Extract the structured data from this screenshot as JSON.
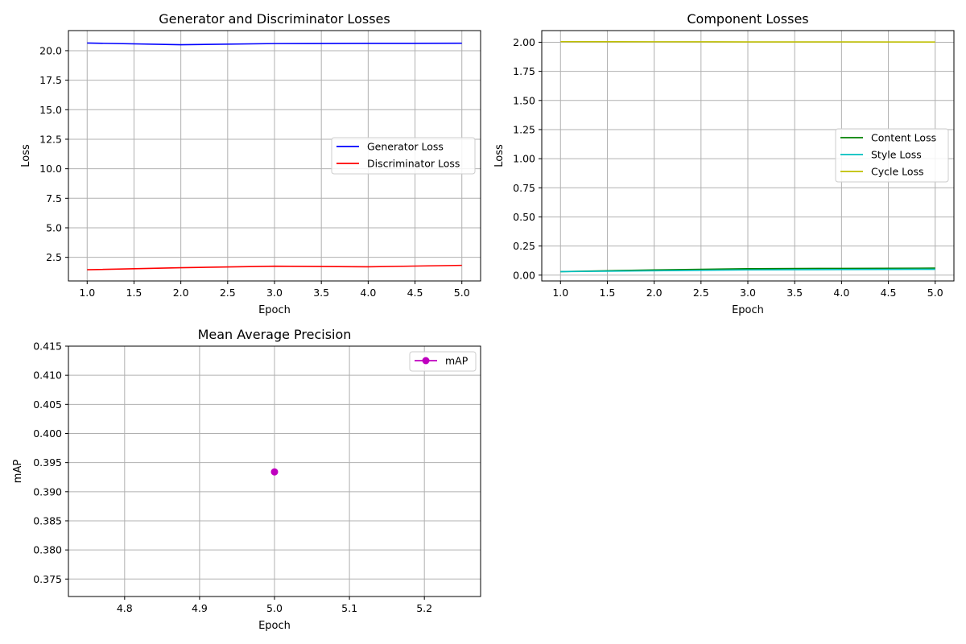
{
  "chart_data": [
    {
      "type": "line",
      "title": "Generator and Discriminator Losses",
      "xlabel": "Epoch",
      "ylabel": "Loss",
      "xlim": [
        0.8,
        5.2
      ],
      "ylim": [
        0.5,
        21.7
      ],
      "xticks": [
        "1.0",
        "1.5",
        "2.0",
        "2.5",
        "3.0",
        "3.5",
        "4.0",
        "4.5",
        "5.0"
      ],
      "yticks": [
        "2.5",
        "5.0",
        "7.5",
        "10.0",
        "12.5",
        "15.0",
        "17.5",
        "20.0"
      ],
      "grid": true,
      "legend_position": "center-right",
      "x": [
        1,
        2,
        3,
        4,
        5
      ],
      "series": [
        {
          "name": "Generator Loss",
          "color": "#0000ff",
          "values": [
            20.65,
            20.5,
            20.6,
            20.62,
            20.63
          ]
        },
        {
          "name": "Discriminator Loss",
          "color": "#ff0000",
          "values": [
            1.45,
            1.62,
            1.75,
            1.7,
            1.82
          ]
        }
      ]
    },
    {
      "type": "line",
      "title": "Component Losses",
      "xlabel": "Epoch",
      "ylabel": "Loss",
      "xlim": [
        0.8,
        5.2
      ],
      "ylim": [
        -0.05,
        2.1
      ],
      "xticks": [
        "1.0",
        "1.5",
        "2.0",
        "2.5",
        "3.0",
        "3.5",
        "4.0",
        "4.5",
        "5.0"
      ],
      "yticks": [
        "0.00",
        "0.25",
        "0.50",
        "0.75",
        "1.00",
        "1.25",
        "1.50",
        "1.75",
        "2.00"
      ],
      "grid": true,
      "legend_position": "center-right",
      "x": [
        1,
        2,
        3,
        4,
        5
      ],
      "series": [
        {
          "name": "Content Loss",
          "color": "#008000",
          "values": [
            0.03,
            0.045,
            0.055,
            0.058,
            0.06
          ]
        },
        {
          "name": "Style Loss",
          "color": "#00bfbf",
          "values": [
            0.03,
            0.038,
            0.045,
            0.048,
            0.05
          ]
        },
        {
          "name": "Cycle Loss",
          "color": "#bfbf00",
          "values": [
            2.005,
            2.004,
            2.003,
            2.003,
            2.002
          ]
        }
      ]
    },
    {
      "type": "scatter",
      "title": "Mean Average Precision",
      "xlabel": "Epoch",
      "ylabel": "mAP",
      "xlim": [
        4.725,
        5.275
      ],
      "ylim": [
        0.372,
        0.415
      ],
      "xticks": [
        "4.8",
        "4.9",
        "5.0",
        "5.1",
        "5.2"
      ],
      "yticks": [
        "0.375",
        "0.380",
        "0.385",
        "0.390",
        "0.395",
        "0.400",
        "0.405",
        "0.410",
        "0.415"
      ],
      "grid": true,
      "legend_position": "upper-right",
      "x": [
        5.0
      ],
      "series": [
        {
          "name": "mAP",
          "color": "#bf00bf",
          "values": [
            0.3934
          ],
          "marker": "circle"
        }
      ]
    }
  ]
}
